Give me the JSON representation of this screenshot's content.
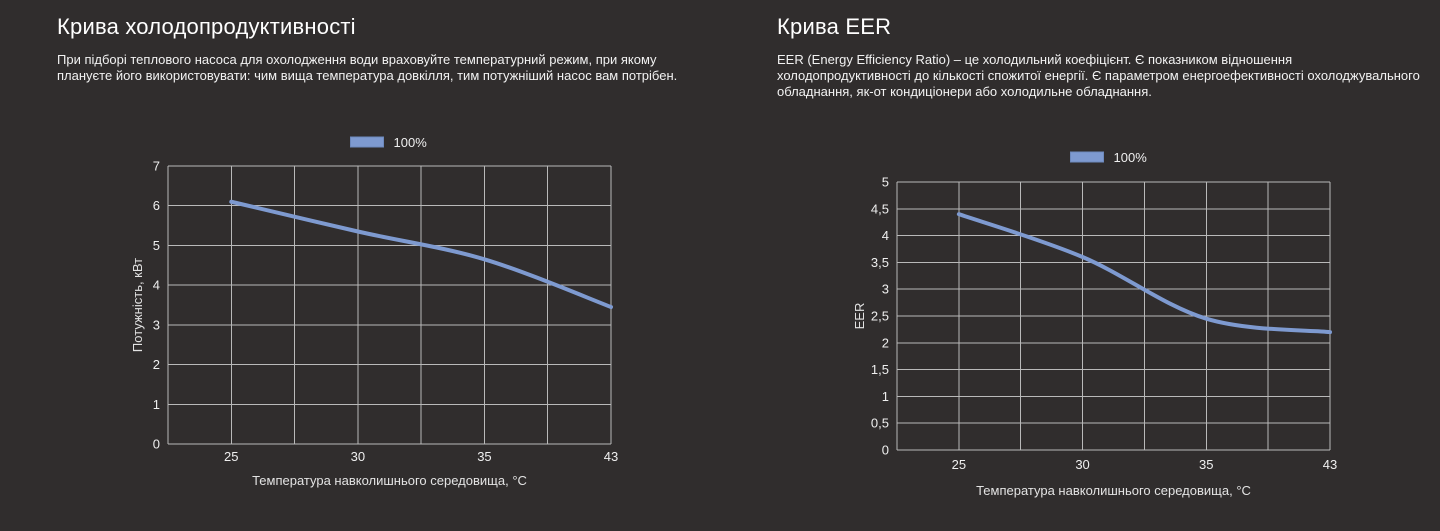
{
  "colors": {
    "background": "#302d2d",
    "line": "#7e9ad0",
    "grid": "#b9b9b9",
    "tick_text": "#efefef",
    "axis_title_text": "#e3e3e3",
    "title_text": "#ffffff"
  },
  "sections": [
    {
      "title": "Крива холодопродуктивності",
      "description": "При підборі теплового насоса для охолодження води враховуйте температурний режим, при якому плануєте його використовувати: чим вища температура довкілля, тим потужніший насос вам потрібен."
    },
    {
      "title": "Крива EER",
      "description": "EER (Energy Efficiency Ratio) – це холодильний коефіцієнт. Є показником відношення холодопродуктивності до кількості спожитої енергії. Є параметром енергоефективності охолоджувального обладнання, як-от кондиціонери або холодильне обладнання."
    }
  ],
  "chart_data": [
    {
      "type": "line",
      "title": "Крива холодопродуктивності",
      "x": [
        25,
        30,
        35,
        43
      ],
      "x_tick_labels": [
        "25",
        "30",
        "35",
        "43"
      ],
      "series": [
        {
          "name": "100%",
          "values": [
            6.1,
            5.35,
            4.65,
            3.45
          ],
          "color": "#7e9ad0"
        }
      ],
      "legend": [
        {
          "label": "100%",
          "color": "#7e9ad0"
        }
      ],
      "legend_position": "top",
      "xlabel": "Температура навколишнього середовища, °C",
      "ylabel": "Потужність, кВт",
      "ylim": [
        0,
        7
      ],
      "ytick_step": 1,
      "decimal_separator": ".",
      "grid": true
    },
    {
      "type": "line",
      "title": "Крива EER",
      "x": [
        25,
        30,
        35,
        43
      ],
      "x_tick_labels": [
        "25",
        "30",
        "35",
        "43"
      ],
      "series": [
        {
          "name": "100%",
          "values": [
            4.4,
            3.6,
            2.45,
            2.2
          ],
          "color": "#7e9ad0"
        }
      ],
      "legend": [
        {
          "label": "100%",
          "color": "#7e9ad0"
        }
      ],
      "legend_position": "top",
      "xlabel": "Температура навколишнього середовища, °C",
      "ylabel": "EER",
      "ylim": [
        0,
        5
      ],
      "ytick_step": 0.5,
      "decimal_separator": ",",
      "grid": true
    }
  ]
}
